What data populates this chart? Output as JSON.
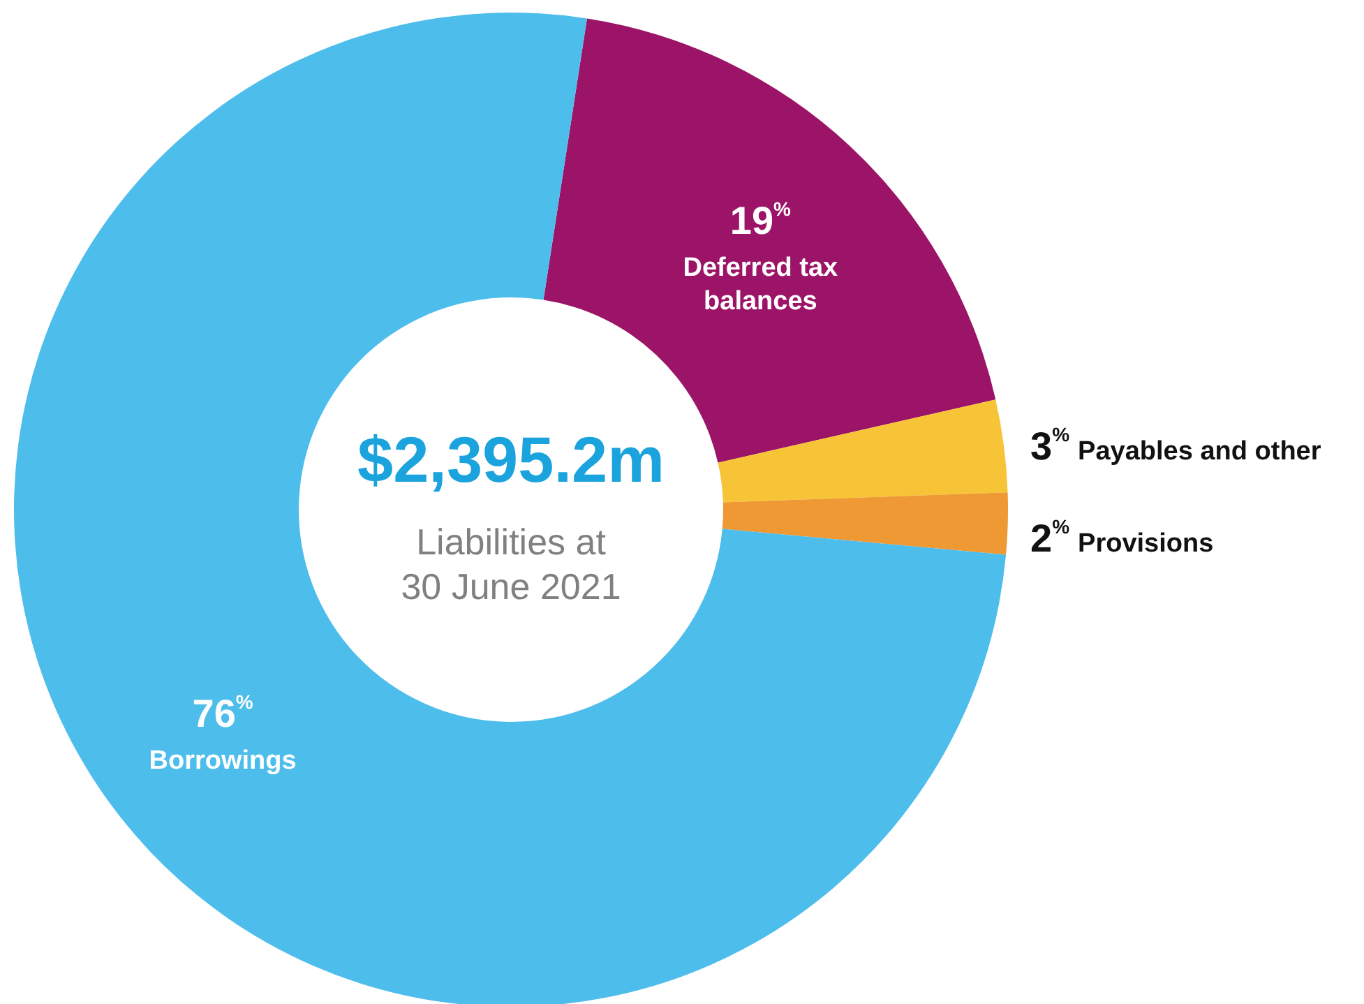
{
  "chart_data": {
    "type": "donut",
    "title": "$2,395.2m",
    "subtitle": "Liabilities at\n30 June 2021",
    "categories": [
      "Deferred tax\nbalances",
      "Payables and other",
      "Provisions",
      "Borrowings"
    ],
    "values": [
      19,
      3,
      2,
      76
    ],
    "value_labels": [
      "19$^{%}$",
      "3$^{%}$",
      "2$^{%}$",
      "76$^{%}$"
    ],
    "colors": [
      "#9b1467",
      "#f8c437",
      "#ee9933",
      "#4dbdec"
    ]
  }
}
